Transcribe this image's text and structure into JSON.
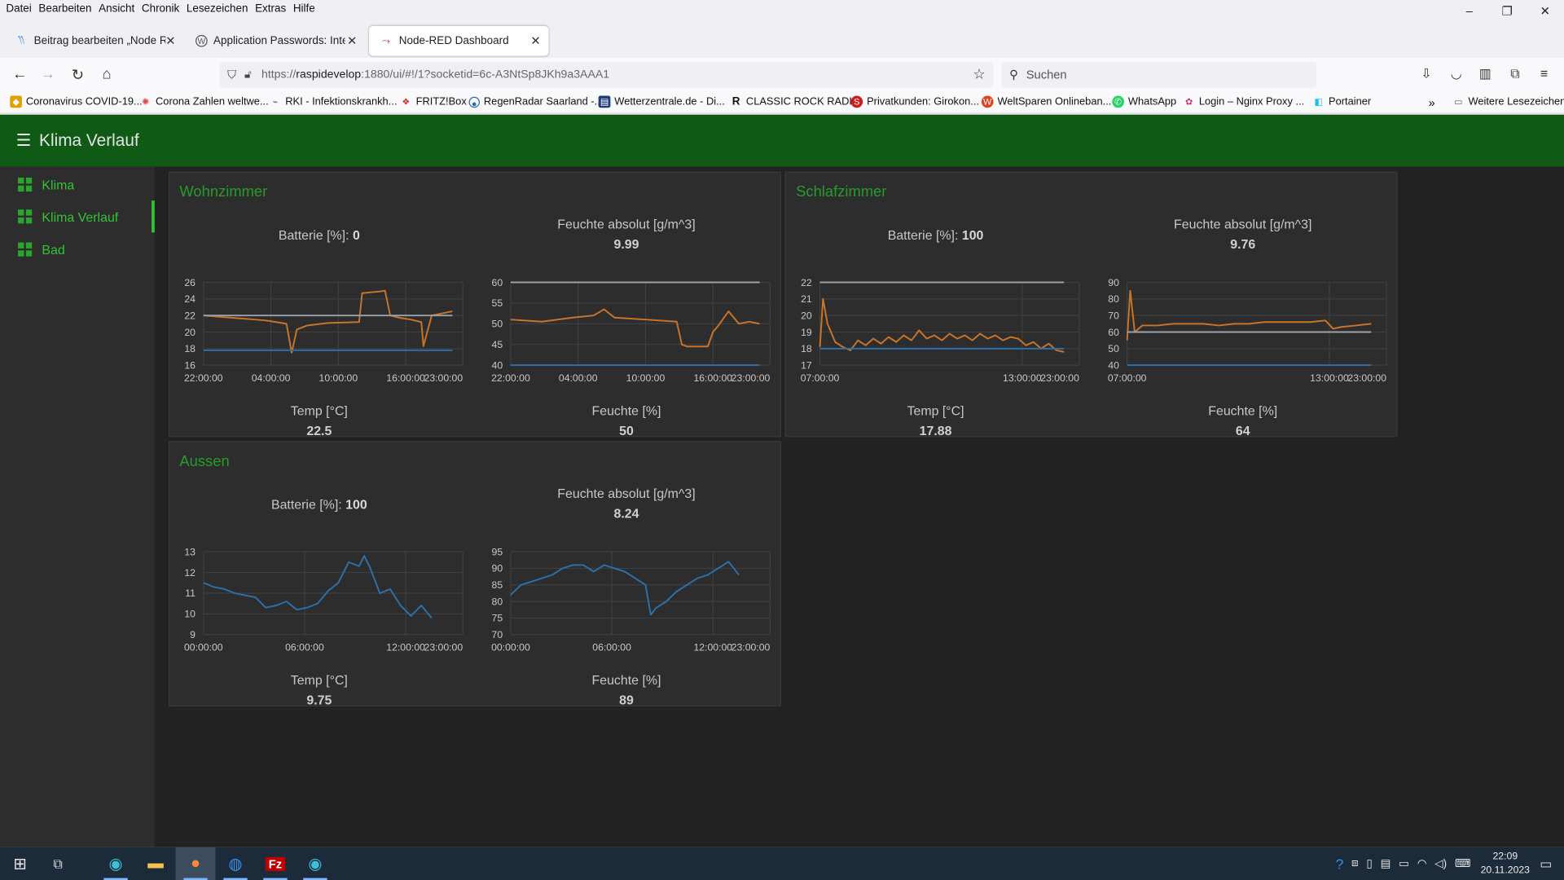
{
  "menubar": {
    "items": [
      "Datei",
      "Bearbeiten",
      "Ansicht",
      "Chronik",
      "Lesezeichen",
      "Extras",
      "Hilfe"
    ]
  },
  "window": {
    "minimize": "–",
    "restore": "❐",
    "close": "✕"
  },
  "tabs": [
    {
      "label": "Beitrag bearbeiten „Node Red P",
      "icon": "wordpress-editor-icon",
      "active": false
    },
    {
      "label": "Application Passwords: Integrat",
      "icon": "wordpress-icon",
      "active": false
    },
    {
      "label": "Node-RED Dashboard",
      "icon": "node-red-icon",
      "active": true
    }
  ],
  "nav": {
    "url_prefix": "https://",
    "url_host": "raspidevelop",
    "url_rest": ":1880/ui/#!/1?socketid=6c-A3NtSp8JKh9a3AAA1",
    "search_placeholder": "Suchen"
  },
  "bookmarks": [
    {
      "label": "Coronavirus COVID-19...",
      "color": "#e0a000"
    },
    {
      "label": "Corona Zahlen weltwe...",
      "color": "#e0484b"
    },
    {
      "label": "RKI - Infektionskrankh...",
      "color": "#666666"
    },
    {
      "label": "FRITZ!Box",
      "color": "#d03030"
    },
    {
      "label": "RegenRadar Saarland -...",
      "color": "#2a6aa8"
    },
    {
      "label": "Wetterzentrale.de - Di...",
      "color": "#1d3e7a"
    },
    {
      "label": "CLASSIC ROCK RADIO",
      "color": "#111111"
    },
    {
      "label": "Privatkunden: Girokon...",
      "color": "#d01c1c"
    },
    {
      "label": "WeltSparen Onlineban...",
      "color": "#e04020"
    },
    {
      "label": "WhatsApp",
      "color": "#25d366"
    },
    {
      "label": "Login – Nginx Proxy ...",
      "color": "#c0336a"
    },
    {
      "label": "Portainer",
      "color": "#13bef9"
    }
  ],
  "bookmarks_more": "Weitere Lesezeichen",
  "dashboard": {
    "title": "Klima Verlauf",
    "nav": [
      {
        "label": "Klima",
        "active": false
      },
      {
        "label": "Klima Verlauf",
        "active": true
      },
      {
        "label": "Bad",
        "active": false
      }
    ],
    "colors": {
      "header": "#0f5a14",
      "accent": "#33c436",
      "line_orange": "#c8742a",
      "line_blue": "#2d6fa8",
      "line_gray": "#9aa3ad"
    },
    "groups": [
      {
        "title": "Wohnzimmer",
        "battery_label": "Batterie [%]:",
        "battery_value": "0",
        "abs_hum_label": "Feuchte absolut [g/m^3]",
        "abs_hum_value": "9.99",
        "temp_label": "Temp [°C]",
        "temp_value": "22.5",
        "hum_label": "Feuchte [%]",
        "hum_value": "50"
      },
      {
        "title": "Schlafzimmer",
        "battery_label": "Batterie [%]:",
        "battery_value": "100",
        "abs_hum_label": "Feuchte absolut [g/m^3]",
        "abs_hum_value": "9.76",
        "temp_label": "Temp [°C]",
        "temp_value": "17.88",
        "hum_label": "Feuchte [%]",
        "hum_value": "64"
      },
      {
        "title": "Aussen",
        "battery_label": "Batterie [%]:",
        "battery_value": "100",
        "abs_hum_label": "Feuchte absolut [g/m^3]",
        "abs_hum_value": "8.24",
        "temp_label": "Temp [°C]",
        "temp_value": "9.75",
        "hum_label": "Feuchte [%]",
        "hum_value": "89"
      }
    ]
  },
  "chart_data": [
    {
      "id": "wz-temp",
      "type": "line",
      "ylim": [
        16,
        26
      ],
      "yticks": [
        16,
        18,
        20,
        22,
        24,
        26
      ],
      "xticks": [
        "22:00:00",
        "04:00:00",
        "10:00:00",
        "16:00:00",
        "23:00:00"
      ],
      "xrange": [
        0,
        25
      ],
      "series": [
        {
          "color": "#c8742a",
          "x": [
            0,
            3,
            5,
            6,
            7,
            8,
            8.5,
            9,
            10,
            12,
            15,
            15.3,
            17,
            17.5,
            18,
            19,
            20,
            21,
            21.2,
            22,
            24
          ],
          "y": [
            22,
            21.7,
            21.5,
            21.4,
            21.2,
            21,
            17.5,
            20.3,
            20.8,
            21.1,
            21.2,
            24.7,
            24.9,
            25,
            22,
            21.7,
            21.5,
            21.2,
            18.3,
            22,
            22.5
          ]
        },
        {
          "color": "#9aa3ad",
          "x": [
            0,
            24
          ],
          "y": [
            22,
            22
          ]
        },
        {
          "color": "#2d6fa8",
          "x": [
            0,
            24
          ],
          "y": [
            17.8,
            17.8
          ]
        }
      ]
    },
    {
      "id": "wz-hum",
      "type": "line",
      "ylim": [
        40,
        60
      ],
      "yticks": [
        40,
        45,
        50,
        55,
        60
      ],
      "xticks": [
        "22:00:00",
        "04:00:00",
        "10:00:00",
        "16:00:00",
        "23:00:00"
      ],
      "xrange": [
        0,
        25
      ],
      "series": [
        {
          "color": "#c8742a",
          "x": [
            0,
            3,
            6,
            8,
            9,
            10,
            13,
            16,
            16.5,
            17,
            19,
            19.5,
            20,
            21,
            22,
            23,
            24
          ],
          "y": [
            51,
            50.5,
            51.5,
            52,
            53.5,
            51.5,
            51,
            50.5,
            45,
            44.5,
            44.5,
            48,
            49.5,
            53,
            50,
            50.5,
            50
          ]
        },
        {
          "color": "#9aa3ad",
          "x": [
            0,
            24
          ],
          "y": [
            60,
            60
          ]
        },
        {
          "color": "#2d6fa8",
          "x": [
            0,
            24
          ],
          "y": [
            40,
            40
          ]
        }
      ]
    },
    {
      "id": "sz-temp",
      "type": "line",
      "ylim": [
        17,
        22
      ],
      "yticks": [
        17,
        18,
        19,
        20,
        21,
        22
      ],
      "xticks": [
        "07:00:00",
        "13:00:00",
        "23:00:00"
      ],
      "xrange": [
        0,
        17
      ],
      "series": [
        {
          "color": "#c8742a",
          "x": [
            0,
            0.2,
            0.5,
            1,
            1.5,
            2,
            2.5,
            3,
            3.5,
            4,
            4.5,
            5,
            5.5,
            6,
            6.5,
            7,
            7.5,
            8,
            8.5,
            9,
            9.5,
            10,
            10.5,
            11,
            11.5,
            12,
            12.5,
            13,
            13.5,
            14,
            14.5,
            15,
            15.5,
            16
          ],
          "y": [
            18.1,
            21,
            19.5,
            18.4,
            18.1,
            17.9,
            18.5,
            18.2,
            18.6,
            18.3,
            18.7,
            18.4,
            18.8,
            18.5,
            19.1,
            18.6,
            18.8,
            18.5,
            18.9,
            18.6,
            18.8,
            18.5,
            18.9,
            18.6,
            18.8,
            18.5,
            18.7,
            18.6,
            18.2,
            18.4,
            18,
            18.3,
            17.9,
            17.8
          ]
        },
        {
          "color": "#9aa3ad",
          "x": [
            0,
            16
          ],
          "y": [
            22,
            22
          ]
        },
        {
          "color": "#2d6fa8",
          "x": [
            0,
            16
          ],
          "y": [
            18,
            18
          ]
        }
      ]
    },
    {
      "id": "sz-hum",
      "type": "line",
      "ylim": [
        40,
        90
      ],
      "yticks": [
        40,
        50,
        60,
        70,
        80,
        90
      ],
      "xticks": [
        "07:00:00",
        "13:00:00",
        "23:00:00"
      ],
      "xrange": [
        0,
        17
      ],
      "series": [
        {
          "color": "#c8742a",
          "x": [
            0,
            0.2,
            0.5,
            1,
            2,
            3,
            4,
            5,
            6,
            7,
            8,
            9,
            10,
            11,
            12,
            13,
            13.5,
            14,
            15,
            16
          ],
          "y": [
            55,
            85,
            60,
            64,
            64,
            65,
            65,
            65,
            64,
            65,
            65,
            66,
            66,
            66,
            66,
            67,
            62,
            63,
            64,
            65
          ]
        },
        {
          "color": "#9aa3ad",
          "x": [
            0,
            16
          ],
          "y": [
            60,
            60
          ]
        },
        {
          "color": "#2d6fa8",
          "x": [
            0,
            16
          ],
          "y": [
            40,
            40
          ]
        }
      ]
    },
    {
      "id": "au-temp",
      "type": "line",
      "ylim": [
        9,
        13
      ],
      "yticks": [
        9,
        10,
        11,
        12,
        13
      ],
      "xticks": [
        "00:00:00",
        "06:00:00",
        "12:00:00",
        "23:00:00"
      ],
      "xrange": [
        0,
        25
      ],
      "series": [
        {
          "color": "#2d6fa8",
          "x": [
            0,
            1,
            2,
            3,
            4,
            5,
            6,
            7,
            8,
            9,
            10,
            11,
            12,
            13,
            14,
            15,
            15.5,
            16,
            17,
            18,
            19,
            20,
            21,
            22
          ],
          "y": [
            11.5,
            11.3,
            11.2,
            11,
            10.9,
            10.8,
            10.3,
            10.4,
            10.6,
            10.2,
            10.3,
            10.5,
            11.1,
            11.5,
            12.5,
            12.3,
            12.8,
            12.3,
            11,
            11.2,
            10.4,
            9.9,
            10.4,
            9.8
          ]
        }
      ]
    },
    {
      "id": "au-hum",
      "type": "line",
      "ylim": [
        70,
        95
      ],
      "yticks": [
        70,
        75,
        80,
        85,
        90,
        95
      ],
      "xticks": [
        "00:00:00",
        "06:00:00",
        "12:00:00",
        "23:00:00"
      ],
      "xrange": [
        0,
        25
      ],
      "series": [
        {
          "color": "#2d6fa8",
          "x": [
            0,
            1,
            2,
            3,
            4,
            5,
            6,
            7,
            8,
            9,
            10,
            11,
            12,
            13,
            13.5,
            14,
            15,
            16,
            17,
            18,
            19,
            20,
            21,
            22
          ],
          "y": [
            82,
            85,
            86,
            87,
            88,
            90,
            91,
            91,
            89,
            91,
            90,
            89,
            87,
            85,
            76,
            78,
            80,
            83,
            85,
            87,
            88,
            90,
            92,
            88
          ]
        }
      ]
    }
  ]
}
